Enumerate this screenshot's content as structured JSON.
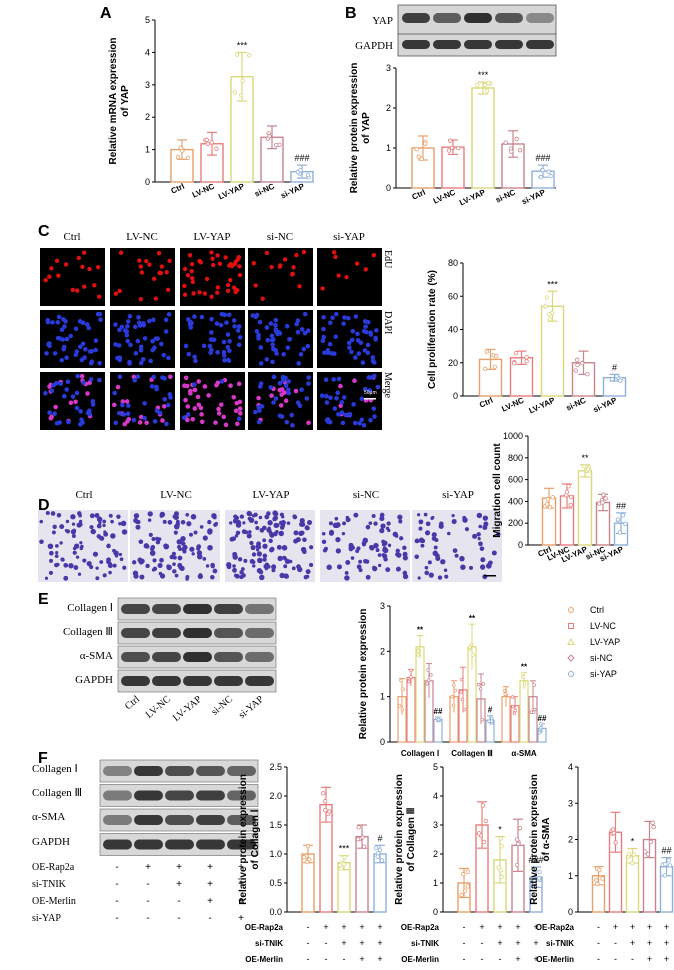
{
  "panels": {
    "a": "A",
    "b": "B",
    "c": "C",
    "d": "D",
    "e": "E",
    "f": "F"
  },
  "colors": {
    "ctrl": "#e8a06a",
    "lvnc": "#e87d7d",
    "lvyap": "#d9d97a",
    "sinc": "#c9848c",
    "siyap": "#8fb0d8"
  },
  "blot_labels": {
    "yap": "YAP",
    "gapdh": "GAPDH",
    "col1": "Collagen Ⅰ",
    "col3": "Collagen Ⅲ",
    "sma": "α-SMA"
  },
  "image_labels": {
    "edu": "EdU",
    "dapi": "DAPI",
    "merge": "Merge",
    "scale_c": "50μm",
    "groups": [
      "Ctrl",
      "LV-NC",
      "LV-YAP",
      "si-NC",
      "si-YAP"
    ]
  },
  "f_treatments": {
    "rows": [
      "OE-Rap2a",
      "si-TNIK",
      "OE-Merlin",
      "si-YAP"
    ],
    "signs": [
      [
        "-",
        "+",
        "+",
        "+",
        "+"
      ],
      [
        "-",
        "-",
        "+",
        "+",
        "+"
      ],
      [
        "-",
        "-",
        "-",
        "+",
        "+"
      ],
      [
        "-",
        "-",
        "-",
        "-",
        "+"
      ]
    ]
  },
  "chart_data": [
    {
      "id": "A",
      "type": "bar",
      "categories": [
        "Ctrl",
        "LV-NC",
        "LV-YAP",
        "si-NC",
        "si-YAP"
      ],
      "values": [
        1.0,
        1.18,
        3.25,
        1.38,
        0.32
      ],
      "errors": [
        0.3,
        0.35,
        0.75,
        0.35,
        0.2
      ],
      "ylabel": "Relative mRNA expression of YAP",
      "ylim": [
        0,
        5
      ],
      "yticks": [
        0,
        1,
        2,
        3,
        4,
        5
      ],
      "annotations": [
        "",
        "",
        "***",
        "",
        "###"
      ]
    },
    {
      "id": "B",
      "type": "bar",
      "categories": [
        "Ctrl",
        "LV-NC",
        "LV-YAP",
        "si-NC",
        "si-YAP"
      ],
      "values": [
        1.0,
        1.02,
        2.5,
        1.1,
        0.42
      ],
      "errors": [
        0.3,
        0.18,
        0.15,
        0.33,
        0.15
      ],
      "ylabel": "Relative protein expression of YAP",
      "ylim": [
        0,
        3
      ],
      "yticks": [
        0,
        1,
        2,
        3
      ],
      "annotations": [
        "",
        "",
        "***",
        "",
        "###"
      ]
    },
    {
      "id": "C",
      "type": "bar",
      "categories": [
        "Ctrl",
        "LV-NC",
        "LV-YAP",
        "si-NC",
        "si-YAP"
      ],
      "values": [
        22,
        23,
        54,
        20,
        11
      ],
      "errors": [
        6,
        4,
        9,
        7,
        2
      ],
      "ylabel": "Cell proliferation rate (%)",
      "ylim": [
        0,
        80
      ],
      "yticks": [
        0,
        20,
        40,
        60,
        80
      ],
      "annotations": [
        "",
        "",
        "***",
        "",
        "#"
      ]
    },
    {
      "id": "D",
      "type": "bar",
      "categories": [
        "Ctrl",
        "LV-NC",
        "LV-YAP",
        "si-NC",
        "si-YAP"
      ],
      "values": [
        430,
        450,
        680,
        390,
        200
      ],
      "errors": [
        90,
        110,
        55,
        75,
        95
      ],
      "ylabel": "Migration cell count",
      "ylim": [
        0,
        1000
      ],
      "yticks": [
        0,
        200,
        400,
        600,
        800,
        1000
      ],
      "annotations": [
        "",
        "",
        "**",
        "",
        "##"
      ]
    },
    {
      "id": "E",
      "type": "bar",
      "categories": [
        "Collagen Ⅰ",
        "Collagen Ⅲ",
        "α-SMA"
      ],
      "series": [
        {
          "name": "Ctrl",
          "values": [
            1.0,
            1.0,
            1.0
          ],
          "errors": [
            0.4,
            0.35,
            0.22
          ]
        },
        {
          "name": "LV-NC",
          "values": [
            1.42,
            1.15,
            0.8
          ],
          "errors": [
            0.18,
            0.5,
            0.2
          ]
        },
        {
          "name": "LV-YAP",
          "values": [
            2.1,
            2.1,
            1.35
          ],
          "errors": [
            0.25,
            0.5,
            0.18
          ]
        },
        {
          "name": "si-NC",
          "values": [
            1.35,
            0.95,
            1.0
          ],
          "errors": [
            0.38,
            0.55,
            0.35
          ]
        },
        {
          "name": "si-YAP",
          "values": [
            0.5,
            0.48,
            0.3
          ],
          "errors": [
            0.05,
            0.1,
            0.1
          ]
        }
      ],
      "ylabel": "Relative protein expression",
      "ylim": [
        0,
        3
      ],
      "yticks": [
        0,
        1,
        2,
        3
      ],
      "annotations": [
        [
          "",
          "",
          "**",
          "",
          "##"
        ],
        [
          "",
          "",
          "**",
          "",
          "#"
        ],
        [
          "",
          "",
          "**",
          "",
          "##"
        ]
      ],
      "legend": "right"
    },
    {
      "id": "F1",
      "type": "bar",
      "values": [
        1.0,
        1.85,
        0.85,
        1.3,
        1.0
      ],
      "errors": [
        0.15,
        0.3,
        0.12,
        0.2,
        0.15
      ],
      "ylabel": "Relative protein expression of Collagen Ⅰ",
      "ylim": [
        0,
        2.5
      ],
      "yticks": [
        0.0,
        0.5,
        1.0,
        1.5,
        2.0,
        2.5
      ],
      "annotations": [
        "",
        "",
        "***",
        "",
        "#"
      ]
    },
    {
      "id": "F2",
      "type": "bar",
      "values": [
        1.0,
        3.0,
        1.8,
        2.3,
        1.2
      ],
      "errors": [
        0.5,
        0.8,
        0.8,
        0.9,
        0.35
      ],
      "ylabel": "Relative protein expression of Collagen Ⅲ",
      "ylim": [
        0,
        5
      ],
      "yticks": [
        0,
        1,
        2,
        3,
        4,
        5
      ],
      "annotations": [
        "",
        "",
        "*",
        "",
        "###"
      ]
    },
    {
      "id": "F3",
      "type": "bar",
      "values": [
        1.0,
        2.2,
        1.55,
        2.0,
        1.25
      ],
      "errors": [
        0.25,
        0.55,
        0.2,
        0.5,
        0.25
      ],
      "ylabel": "Relative protein expression of α-SMA",
      "ylim": [
        0,
        4
      ],
      "yticks": [
        0,
        1,
        2,
        3,
        4
      ],
      "annotations": [
        "",
        "",
        "*",
        "",
        "##"
      ]
    }
  ]
}
